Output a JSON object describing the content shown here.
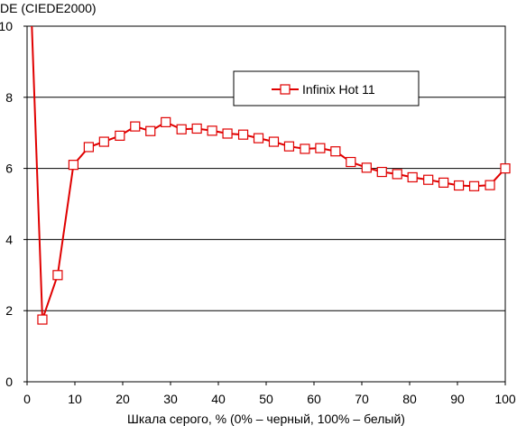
{
  "chart_data": {
    "type": "line",
    "title": "",
    "ylabel": "DE (CIEDE2000)",
    "xlabel": "Шкала серого, % (0% – черный, 100% – белый)",
    "xlim": [
      0,
      100
    ],
    "ylim": [
      0,
      10
    ],
    "xticks": [
      0,
      10,
      20,
      30,
      40,
      50,
      60,
      70,
      80,
      90,
      100
    ],
    "yticks": [
      0,
      2,
      4,
      6,
      8,
      10
    ],
    "grid": "horizontal",
    "legend_position": "top-right",
    "series": [
      {
        "name": "Infinix Hot 11",
        "color": "#e00000",
        "marker": "square",
        "line_only_points": [
          [
            1.0,
            10.0
          ]
        ],
        "points": [
          [
            3.2,
            1.75
          ],
          [
            6.4,
            3.0
          ],
          [
            9.7,
            6.1
          ],
          [
            12.9,
            6.6
          ],
          [
            16.1,
            6.75
          ],
          [
            19.4,
            6.92
          ],
          [
            22.6,
            7.18
          ],
          [
            25.8,
            7.05
          ],
          [
            29.0,
            7.3
          ],
          [
            32.3,
            7.1
          ],
          [
            35.5,
            7.12
          ],
          [
            38.7,
            7.06
          ],
          [
            41.9,
            6.98
          ],
          [
            45.2,
            6.95
          ],
          [
            48.4,
            6.85
          ],
          [
            51.6,
            6.75
          ],
          [
            54.8,
            6.62
          ],
          [
            58.1,
            6.55
          ],
          [
            61.3,
            6.57
          ],
          [
            64.5,
            6.48
          ],
          [
            67.7,
            6.18
          ],
          [
            71.0,
            6.02
          ],
          [
            74.2,
            5.9
          ],
          [
            77.4,
            5.84
          ],
          [
            80.6,
            5.75
          ],
          [
            83.9,
            5.68
          ],
          [
            87.1,
            5.6
          ],
          [
            90.3,
            5.52
          ],
          [
            93.5,
            5.5
          ],
          [
            96.8,
            5.53
          ],
          [
            100.0,
            6.0
          ]
        ]
      }
    ]
  }
}
